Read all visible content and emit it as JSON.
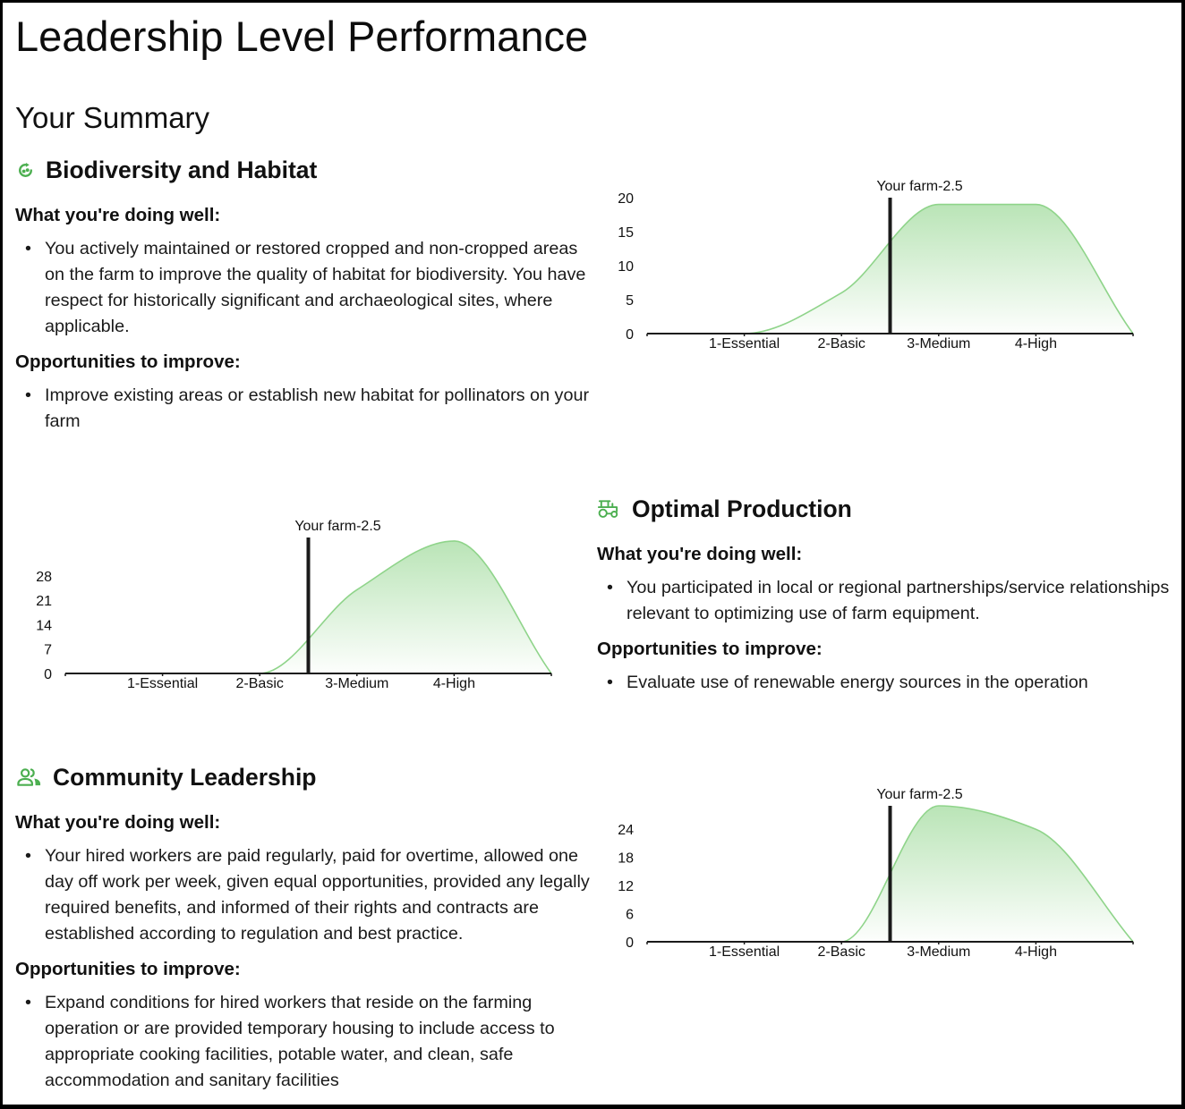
{
  "page": {
    "title": "Leadership Level Performance",
    "summary_heading": "Your Summary"
  },
  "colors": {
    "accent": "#4caf50",
    "curve_line": "#8fd48a",
    "curve_fill": "#8fd48a",
    "marker_line": "#1a1a1a",
    "axis": "#1a1a1a",
    "text": "#111111",
    "frame": "#000000"
  },
  "sections": [
    {
      "title": "Biodiversity and Habitat",
      "icon": "biodiversity-icon",
      "doing_well_heading": "What you're doing well:",
      "doing_well": [
        "You actively maintained or restored cropped and non-cropped areas on the farm to improve the quality of habitat for biodiversity. You have respect for historically significant and archaeological sites, where applicable."
      ],
      "opportunities_heading": "Opportunities to improve:",
      "opportunities": [
        "Improve existing areas or establish new habitat for pollinators on your farm"
      ]
    },
    {
      "title": "Optimal Production",
      "icon": "tractor-icon",
      "doing_well_heading": "What you're doing well:",
      "doing_well": [
        "You participated in local or regional partnerships/service relationships relevant to optimizing use of farm equipment."
      ],
      "opportunities_heading": "Opportunities to improve:",
      "opportunities": [
        "Evaluate use of renewable energy sources in the operation"
      ]
    },
    {
      "title": "Community Leadership",
      "icon": "users-icon",
      "doing_well_heading": "What you're doing well:",
      "doing_well": [
        "Your hired workers are paid regularly, paid for overtime, allowed one day off work per week, given equal opportunities, provided any legally required benefits, and informed of their rights and contracts are established according to regulation and best practice."
      ],
      "opportunities_heading": "Opportunities to improve:",
      "opportunities": [
        "Expand conditions for hired workers that reside on the farming operation or are provided temporary housing to include access to appropriate cooking facilities, potable water, and clean, safe accommodation and sanitary facilities"
      ]
    }
  ],
  "chart_data": [
    {
      "type": "area",
      "associated_section": "Biodiversity and Habitat",
      "title": "",
      "xlabel": "",
      "ylabel": "",
      "categories": [
        "1-Essential",
        "2-Basic",
        "3-Medium",
        "4-High"
      ],
      "category_positions": [
        1,
        2,
        3,
        4
      ],
      "x": [
        0,
        1,
        2,
        3,
        4,
        5
      ],
      "values": [
        0,
        0,
        6,
        19,
        19,
        0
      ],
      "xlim": [
        0,
        5
      ],
      "ylim": [
        0,
        20
      ],
      "yticks": [
        0,
        5,
        10,
        15,
        20
      ],
      "grid": false,
      "legend": "none",
      "marker": {
        "x": 2.5,
        "label": "Your farm-2.5"
      }
    },
    {
      "type": "area",
      "associated_section": "Optimal Production",
      "title": "",
      "xlabel": "",
      "ylabel": "",
      "categories": [
        "1-Essential",
        "2-Basic",
        "3-Medium",
        "4-High"
      ],
      "category_positions": [
        1,
        2,
        3,
        4
      ],
      "x": [
        0,
        1,
        2,
        3,
        4,
        5
      ],
      "values": [
        0,
        0,
        0,
        24,
        38,
        0
      ],
      "xlim": [
        0,
        5
      ],
      "ylim": [
        0,
        39
      ],
      "yticks": [
        0,
        7,
        14,
        21,
        28
      ],
      "grid": false,
      "legend": "none",
      "marker": {
        "x": 2.5,
        "label": "Your farm-2.5"
      }
    },
    {
      "type": "area",
      "associated_section": "Community Leadership",
      "title": "",
      "xlabel": "",
      "ylabel": "",
      "categories": [
        "1-Essential",
        "2-Basic",
        "3-Medium",
        "4-High"
      ],
      "category_positions": [
        1,
        2,
        3,
        4
      ],
      "x": [
        0,
        1,
        2,
        3,
        4,
        5
      ],
      "values": [
        0,
        0,
        0,
        29,
        24,
        0
      ],
      "xlim": [
        0,
        5
      ],
      "ylim": [
        0,
        29
      ],
      "yticks": [
        0,
        6,
        12,
        18,
        24
      ],
      "grid": false,
      "legend": "none",
      "marker": {
        "x": 2.5,
        "label": "Your farm-2.5"
      }
    }
  ]
}
